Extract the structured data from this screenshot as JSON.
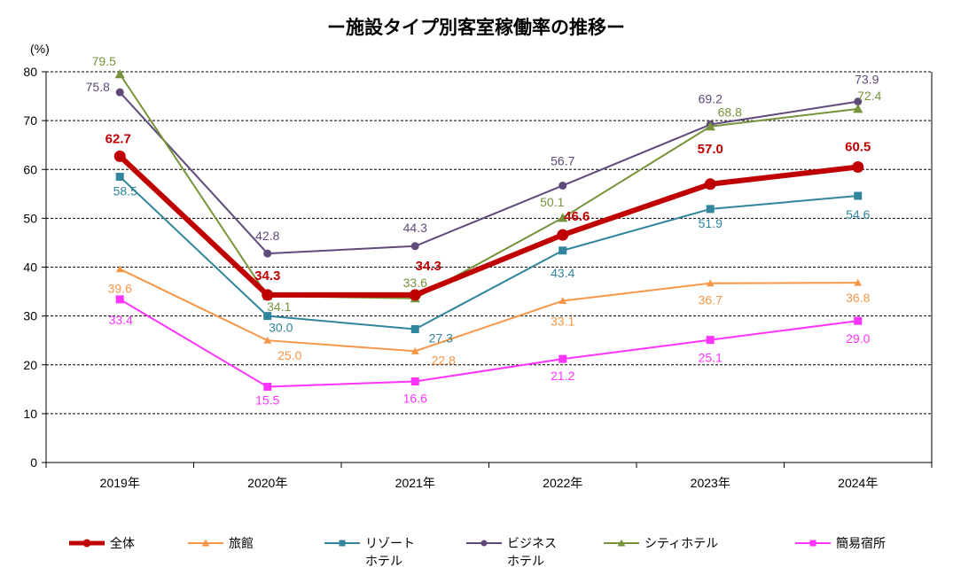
{
  "chart_data": {
    "type": "line",
    "title": "ー施設タイプ別客室稼働率の推移ー",
    "ylabel": "(%)",
    "xlabel": "",
    "ylim": [
      0,
      80
    ],
    "yticks": [
      "0",
      "10",
      "20",
      "30",
      "40",
      "50",
      "60",
      "70",
      "80"
    ],
    "grid": true,
    "legend_position": "bottom",
    "categories": [
      "2019年",
      "2020年",
      "2021年",
      "2022年",
      "2023年",
      "2024年"
    ],
    "series": [
      {
        "name": "全体",
        "color": "#c00000",
        "marker": "circle",
        "bold": true,
        "values": [
          62.7,
          34.3,
          34.3,
          46.6,
          57.0,
          60.5
        ],
        "labels": [
          "62.7",
          "34.3",
          "34.3",
          "46.6",
          "57.0",
          "60.5"
        ]
      },
      {
        "name": "旅館",
        "color": "#f79646",
        "marker": "triangle",
        "values": [
          39.6,
          25.0,
          22.8,
          33.1,
          36.7,
          36.8
        ],
        "labels": [
          "39.6",
          "25.0",
          "22.8",
          "33.1",
          "36.7",
          "36.8"
        ]
      },
      {
        "name": "リゾートホテル",
        "legend_lines": [
          "リゾート",
          "ホテル"
        ],
        "color": "#31859c",
        "marker": "square",
        "values": [
          58.5,
          30.0,
          27.3,
          43.4,
          51.9,
          54.6
        ],
        "labels": [
          "58.5",
          "30.0",
          "27.3",
          "43.4",
          "51.9",
          "54.6"
        ]
      },
      {
        "name": "ビジネスホテル",
        "legend_lines": [
          "ビジネス",
          "ホテル"
        ],
        "color": "#604a7b",
        "marker": "circle",
        "values": [
          75.8,
          42.8,
          44.3,
          56.7,
          69.2,
          73.9
        ],
        "labels": [
          "75.8",
          "42.8",
          "44.3",
          "56.7",
          "69.2",
          "73.9"
        ]
      },
      {
        "name": "シティホテル",
        "color": "#77933c",
        "marker": "triangle",
        "values": [
          79.5,
          34.1,
          33.6,
          50.1,
          68.8,
          72.4
        ],
        "labels": [
          "79.5",
          "34.1",
          "33.6",
          "50.1",
          "68.8",
          "72.4"
        ]
      },
      {
        "name": "簡易宿所",
        "color": "#ff33ff",
        "marker": "square",
        "values": [
          33.4,
          15.5,
          16.6,
          21.2,
          25.1,
          29.0
        ],
        "labels": [
          "33.4",
          "15.5",
          "16.6",
          "21.2",
          "25.1",
          "29.0"
        ]
      }
    ]
  }
}
